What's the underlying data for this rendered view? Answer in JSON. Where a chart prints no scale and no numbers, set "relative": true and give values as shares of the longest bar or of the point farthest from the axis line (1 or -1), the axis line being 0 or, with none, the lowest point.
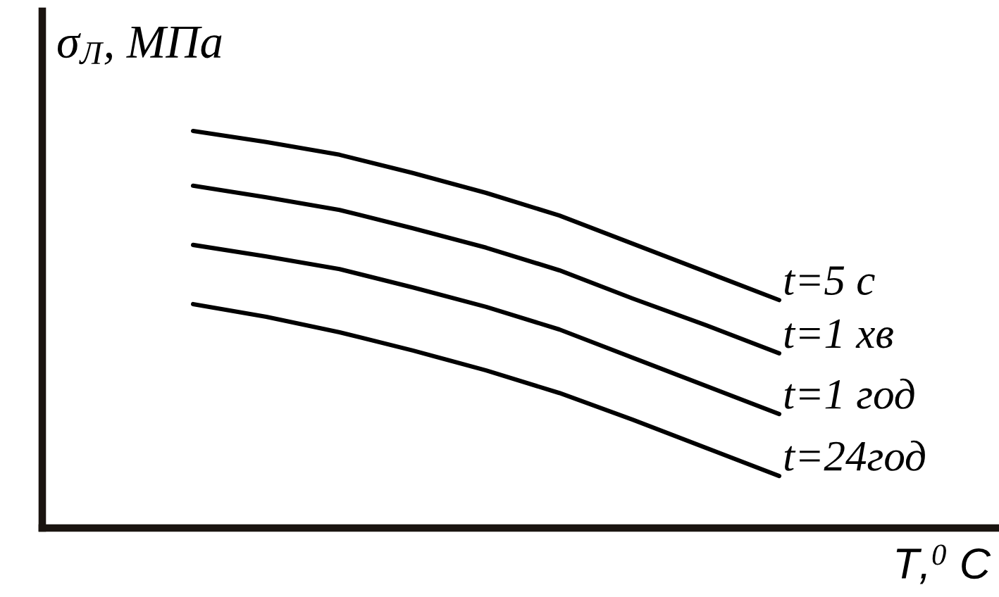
{
  "chart_data": {
    "type": "line",
    "relative": true,
    "xlabel": "T,$^{0}$ C",
    "ylabel": "σ$_{Л}$, МПа",
    "categories": [
      null,
      null,
      null,
      null,
      null,
      null,
      null,
      null,
      null
    ],
    "series": [
      {
        "name": "t=5 c",
        "color": "#000000",
        "values": [
          1,
          0.972,
          0.94,
          0.894,
          0.844,
          0.787,
          0.716,
          0.645,
          0.574
        ]
      },
      {
        "name": "t=1 хв",
        "color": "#000000",
        "values": [
          0.862,
          0.833,
          0.801,
          0.755,
          0.706,
          0.649,
          0.578,
          0.511,
          0.44
        ]
      },
      {
        "name": "t=1 год",
        "color": "#000000",
        "values": [
          0.713,
          0.684,
          0.652,
          0.606,
          0.557,
          0.5,
          0.429,
          0.358,
          0.287
        ]
      },
      {
        "name": "t=24год",
        "color": "#000000",
        "values": [
          0.564,
          0.532,
          0.493,
          0.447,
          0.397,
          0.34,
          0.273,
          0.202,
          0.131
        ]
      }
    ],
    "legend": false,
    "marker": "none",
    "line_style": "solid"
  }
}
